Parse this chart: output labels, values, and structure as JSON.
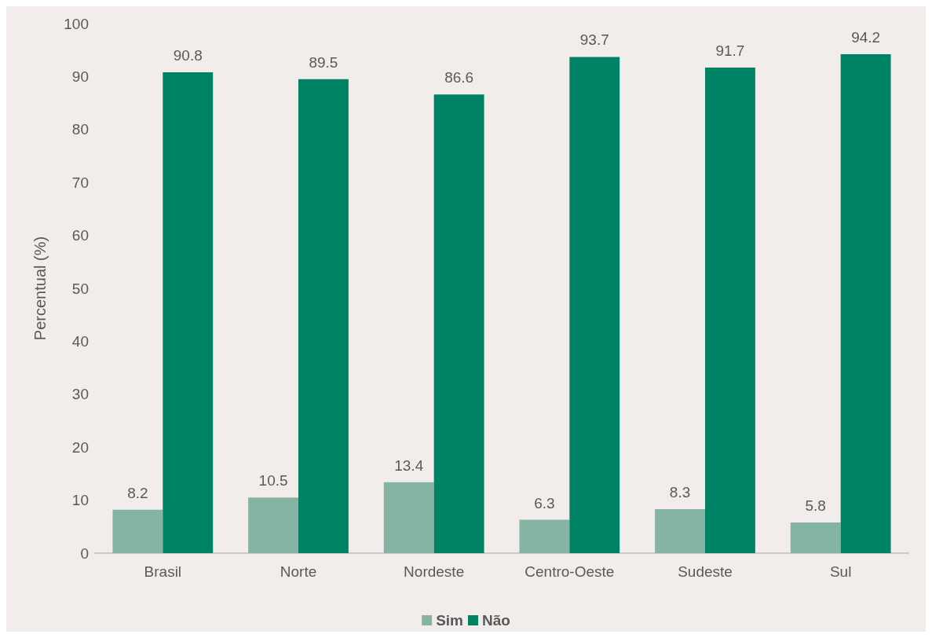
{
  "chart_data": {
    "type": "bar",
    "ylabel": "Percentual (%)",
    "categories": [
      "Brasil",
      "Norte",
      "Nordeste",
      "Centro-Oeste",
      "Sudeste",
      "Sul"
    ],
    "series": [
      {
        "name": "Sim",
        "color": "#86b4a4",
        "values": [
          8.2,
          10.5,
          13.4,
          6.3,
          8.3,
          5.8
        ]
      },
      {
        "name": "Não",
        "color": "#008264",
        "values": [
          90.8,
          89.5,
          86.6,
          93.7,
          91.7,
          94.2
        ]
      }
    ],
    "ylim": [
      0,
      100
    ],
    "yticks": [
      0,
      10,
      20,
      30,
      40,
      50,
      60,
      70,
      80,
      90,
      100
    ],
    "grid": false,
    "legend": "bottom",
    "data_labels": true
  }
}
